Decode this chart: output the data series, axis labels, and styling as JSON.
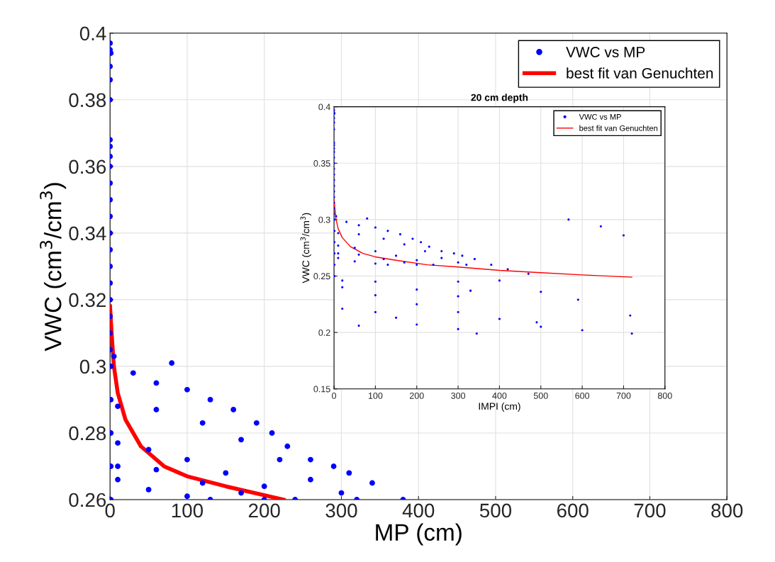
{
  "chart_data": [
    {
      "type": "scatter",
      "xlabel": "MP (cm)",
      "ylabel": "VWC (cm$^{3}$/cm$^{3}$)",
      "xlim": [
        0,
        800
      ],
      "ylim": [
        0.26,
        0.4
      ],
      "xticks": [
        0,
        100,
        200,
        300,
        400,
        500,
        600,
        700,
        800
      ],
      "yticks": [
        0.26,
        0.28,
        0.3,
        0.32,
        0.34,
        0.36,
        0.38,
        0.4
      ],
      "grid": true,
      "legend": "top right",
      "series": [
        {
          "name": "VWC vs MP",
          "type": "scatter",
          "marker": "circle",
          "color": "#0000ff",
          "x": [
            0,
            0,
            1,
            0,
            0,
            0,
            0,
            0,
            0,
            0,
            0,
            0,
            0,
            0,
            0,
            0,
            0,
            0,
            0,
            0,
            0,
            1,
            1,
            1,
            1,
            1,
            5,
            30,
            60,
            100,
            130,
            160,
            190,
            210,
            230,
            260,
            290,
            310,
            340,
            380,
            10,
            60,
            120,
            170,
            220,
            260,
            300,
            320,
            10,
            50,
            100,
            150,
            200,
            240,
            10,
            60,
            120,
            170,
            200,
            10,
            50,
            100,
            130,
            80
          ],
          "values": [
            0.397,
            0.395,
            0.394,
            0.39,
            0.386,
            0.38,
            0.368,
            0.366,
            0.363,
            0.36,
            0.355,
            0.35,
            0.345,
            0.34,
            0.335,
            0.33,
            0.325,
            0.32,
            0.315,
            0.31,
            0.305,
            0.3,
            0.29,
            0.28,
            0.27,
            0.26,
            0.303,
            0.298,
            0.295,
            0.293,
            0.29,
            0.287,
            0.283,
            0.28,
            0.276,
            0.272,
            0.27,
            0.268,
            0.265,
            0.26,
            0.288,
            0.287,
            0.283,
            0.278,
            0.272,
            0.266,
            0.262,
            0.26,
            0.277,
            0.275,
            0.272,
            0.268,
            0.264,
            0.26,
            0.27,
            0.269,
            0.265,
            0.262,
            0.26,
            0.266,
            0.263,
            0.261,
            0.26,
            0.301
          ]
        },
        {
          "name": "best fit van Genuchten",
          "type": "line",
          "marker": "none",
          "line_style": "solid",
          "color": "#ff0000",
          "x": [
            0,
            2,
            5,
            10,
            20,
            40,
            70,
            100,
            150,
            225
          ],
          "values": [
            0.318,
            0.31,
            0.3,
            0.292,
            0.284,
            0.276,
            0.27,
            0.267,
            0.264,
            0.26
          ]
        }
      ]
    },
    {
      "type": "scatter",
      "title": "20 cm depth",
      "xlabel": "IMPI (cm)",
      "ylabel": "VWC (cm$^{3}$/cm$^{3}$)",
      "xlim": [
        0,
        800
      ],
      "ylim": [
        0.15,
        0.4
      ],
      "xticks": [
        0,
        100,
        200,
        300,
        400,
        500,
        600,
        700,
        800
      ],
      "yticks": [
        0.15,
        0.2,
        0.25,
        0.3,
        0.35,
        0.4
      ],
      "grid": true,
      "legend": "top right",
      "series": [
        {
          "name": "VWC vs MP",
          "type": "scatter",
          "marker": "circle",
          "color": "#0000ff",
          "x": [
            0,
            0,
            1,
            0,
            0,
            0,
            0,
            0,
            0,
            0,
            0,
            0,
            0,
            0,
            0,
            0,
            0,
            0,
            0,
            0,
            0,
            1,
            1,
            1,
            1,
            1,
            1,
            5,
            30,
            60,
            100,
            130,
            160,
            190,
            210,
            230,
            260,
            290,
            310,
            340,
            380,
            420,
            470,
            10,
            60,
            120,
            170,
            220,
            260,
            300,
            320,
            10,
            50,
            100,
            150,
            200,
            240,
            300,
            330,
            10,
            60,
            120,
            170,
            200,
            10,
            50,
            100,
            130,
            80,
            20,
            100,
            200,
            300,
            330,
            20,
            100,
            200,
            300,
            400,
            490,
            20,
            100,
            150,
            200,
            300,
            345,
            500,
            600,
            720,
            400,
            500,
            590,
            60,
            567,
            645,
            700,
            716
          ],
          "values": [
            0.397,
            0.395,
            0.394,
            0.39,
            0.386,
            0.38,
            0.368,
            0.366,
            0.363,
            0.36,
            0.355,
            0.35,
            0.345,
            0.34,
            0.335,
            0.33,
            0.325,
            0.32,
            0.315,
            0.31,
            0.305,
            0.3,
            0.29,
            0.28,
            0.27,
            0.26,
            0.25,
            0.303,
            0.298,
            0.295,
            0.293,
            0.29,
            0.287,
            0.283,
            0.28,
            0.276,
            0.272,
            0.27,
            0.268,
            0.265,
            0.26,
            0.256,
            0.252,
            0.288,
            0.287,
            0.283,
            0.278,
            0.272,
            0.266,
            0.262,
            0.26,
            0.277,
            0.275,
            0.272,
            0.268,
            0.264,
            0.26,
            0.245,
            0.237,
            0.27,
            0.269,
            0.265,
            0.262,
            0.26,
            0.266,
            0.263,
            0.261,
            0.26,
            0.301,
            0.246,
            0.245,
            0.238,
            0.232,
            0.237,
            0.24,
            0.233,
            0.225,
            0.218,
            0.212,
            0.209,
            0.221,
            0.218,
            0.213,
            0.207,
            0.203,
            0.199,
            0.205,
            0.202,
            0.199,
            0.246,
            0.236,
            0.229,
            0.206,
            0.3,
            0.294,
            0.286,
            0.215
          ]
        },
        {
          "name": "best fit van Genuchten",
          "type": "line",
          "marker": "none",
          "line_style": "solid",
          "color": "#ff0000",
          "x": [
            0,
            2,
            5,
            10,
            20,
            40,
            70,
            100,
            150,
            225,
            300,
            400,
            500,
            600,
            720
          ],
          "values": [
            0.318,
            0.31,
            0.3,
            0.292,
            0.284,
            0.276,
            0.27,
            0.267,
            0.264,
            0.26,
            0.258,
            0.255,
            0.253,
            0.251,
            0.249
          ]
        }
      ]
    }
  ]
}
